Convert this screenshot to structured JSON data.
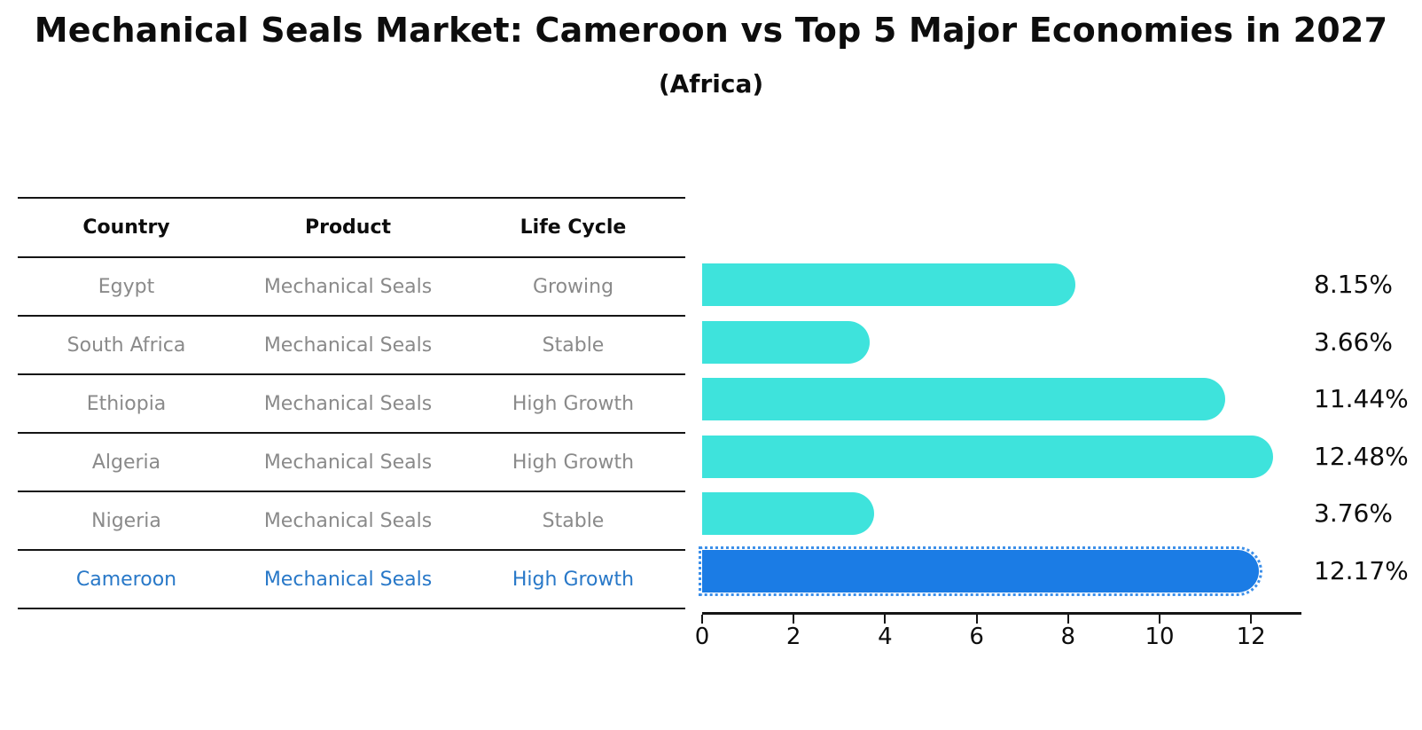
{
  "header": {
    "title": "Mechanical Seals Market: Cameroon vs Top 5 Major Economies in 2027",
    "subtitle": "(Africa)"
  },
  "table": {
    "columns": [
      "Country",
      "Product",
      "Life Cycle"
    ],
    "rows": [
      {
        "country": "Egypt",
        "product": "Mechanical Seals",
        "life_cycle": "Growing",
        "highlight": false
      },
      {
        "country": "South Africa",
        "product": "Mechanical Seals",
        "life_cycle": "Stable",
        "highlight": false
      },
      {
        "country": "Ethiopia",
        "product": "Mechanical Seals",
        "life_cycle": "High Growth",
        "highlight": false
      },
      {
        "country": "Algeria",
        "product": "Mechanical Seals",
        "life_cycle": "High Growth",
        "highlight": false
      },
      {
        "country": "Nigeria",
        "product": "Mechanical Seals",
        "life_cycle": "Stable",
        "highlight": false
      },
      {
        "country": "Cameroon",
        "product": "Mechanical Seals",
        "life_cycle": "High Growth",
        "highlight": true
      }
    ]
  },
  "chart_data": {
    "type": "bar",
    "orientation": "horizontal",
    "title": "Mechanical Seals Market: Cameroon vs Top 5 Major Economies in 2027",
    "subtitle": "(Africa)",
    "categories": [
      "Egypt",
      "South Africa",
      "Ethiopia",
      "Algeria",
      "Nigeria",
      "Cameroon"
    ],
    "values": [
      8.15,
      3.66,
      11.44,
      12.48,
      3.76,
      12.17
    ],
    "value_labels": [
      "8.15%",
      "3.66%",
      "11.44%",
      "12.48%",
      "3.76%",
      "12.17%"
    ],
    "xlabel": "",
    "ylabel": "",
    "xlim": [
      0,
      13.1
    ],
    "x_ticks": [
      0,
      2,
      4,
      6,
      8,
      10,
      12
    ],
    "grid": false,
    "legend": "none",
    "bar_color": "#3EE3DC",
    "highlight_color": "#1B7CE5",
    "highlight_index": 5,
    "highlight_text_color": "#2878C8",
    "row_text_color": "#8A8A8A"
  }
}
